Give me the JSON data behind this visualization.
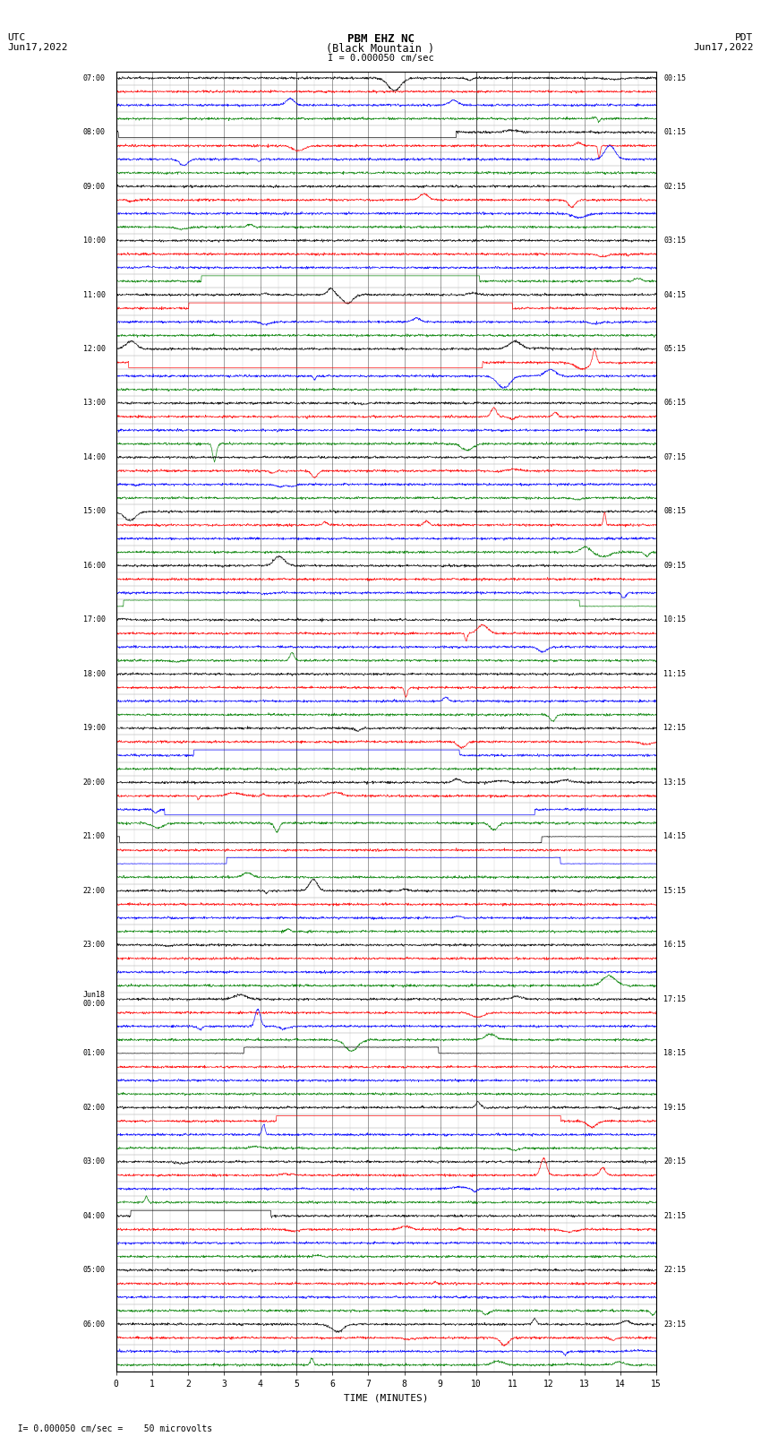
{
  "title_line1": "PBM EHZ NC",
  "title_line2": "(Black Mountain )",
  "scale_label": "I = 0.000050 cm/sec",
  "left_header_line1": "UTC",
  "left_header_line2": "Jun17,2022",
  "right_header_line1": "PDT",
  "right_header_line2": "Jun17,2022",
  "xlabel": "TIME (MINUTES)",
  "footer_label": "= 0.000050 cm/sec =    50 microvolts",
  "utc_labels": [
    "07:00",
    "",
    "",
    "",
    "08:00",
    "",
    "",
    "",
    "09:00",
    "",
    "",
    "",
    "10:00",
    "",
    "",
    "",
    "11:00",
    "",
    "",
    "",
    "12:00",
    "",
    "",
    "",
    "13:00",
    "",
    "",
    "",
    "14:00",
    "",
    "",
    "",
    "15:00",
    "",
    "",
    "",
    "16:00",
    "",
    "",
    "",
    "17:00",
    "",
    "",
    "",
    "18:00",
    "",
    "",
    "",
    "19:00",
    "",
    "",
    "",
    "20:00",
    "",
    "",
    "",
    "21:00",
    "",
    "",
    "",
    "22:00",
    "",
    "",
    "",
    "23:00",
    "",
    "",
    "",
    "Jun18\n00:00",
    "",
    "",
    "",
    "01:00",
    "",
    "",
    "",
    "02:00",
    "",
    "",
    "",
    "03:00",
    "",
    "",
    "",
    "04:00",
    "",
    "",
    "",
    "05:00",
    "",
    "",
    "",
    "06:00",
    "",
    "",
    ""
  ],
  "pdt_labels": [
    "00:15",
    "",
    "",
    "",
    "01:15",
    "",
    "",
    "",
    "02:15",
    "",
    "",
    "",
    "03:15",
    "",
    "",
    "",
    "04:15",
    "",
    "",
    "",
    "05:15",
    "",
    "",
    "",
    "06:15",
    "",
    "",
    "",
    "07:15",
    "",
    "",
    "",
    "08:15",
    "",
    "",
    "",
    "09:15",
    "",
    "",
    "",
    "10:15",
    "",
    "",
    "",
    "11:15",
    "",
    "",
    "",
    "12:15",
    "",
    "",
    "",
    "13:15",
    "",
    "",
    "",
    "14:15",
    "",
    "",
    "",
    "15:15",
    "",
    "",
    "",
    "16:15",
    "",
    "",
    "",
    "17:15",
    "",
    "",
    "",
    "18:15",
    "",
    "",
    "",
    "19:15",
    "",
    "",
    "",
    "20:15",
    "",
    "",
    "",
    "21:15",
    "",
    "",
    "",
    "22:15",
    "",
    "",
    "",
    "23:15",
    "",
    "",
    ""
  ],
  "n_rows": 96,
  "minutes_per_row": 15,
  "x_ticks": [
    0,
    1,
    2,
    3,
    4,
    5,
    6,
    7,
    8,
    9,
    10,
    11,
    12,
    13,
    14,
    15
  ],
  "background_color": "#ffffff",
  "row_colors": [
    "#000000",
    "#ff0000",
    "#0000ff",
    "#008000"
  ],
  "seed": 42,
  "noise_amp": 0.04,
  "spike_prob": 0.15,
  "solid_line_rows": {
    "red_full": [
      1,
      13,
      25,
      37,
      49,
      61,
      65,
      81,
      93
    ],
    "blue_full": [
      2,
      14,
      38,
      58,
      82
    ],
    "black_full": [
      12,
      48
    ]
  }
}
